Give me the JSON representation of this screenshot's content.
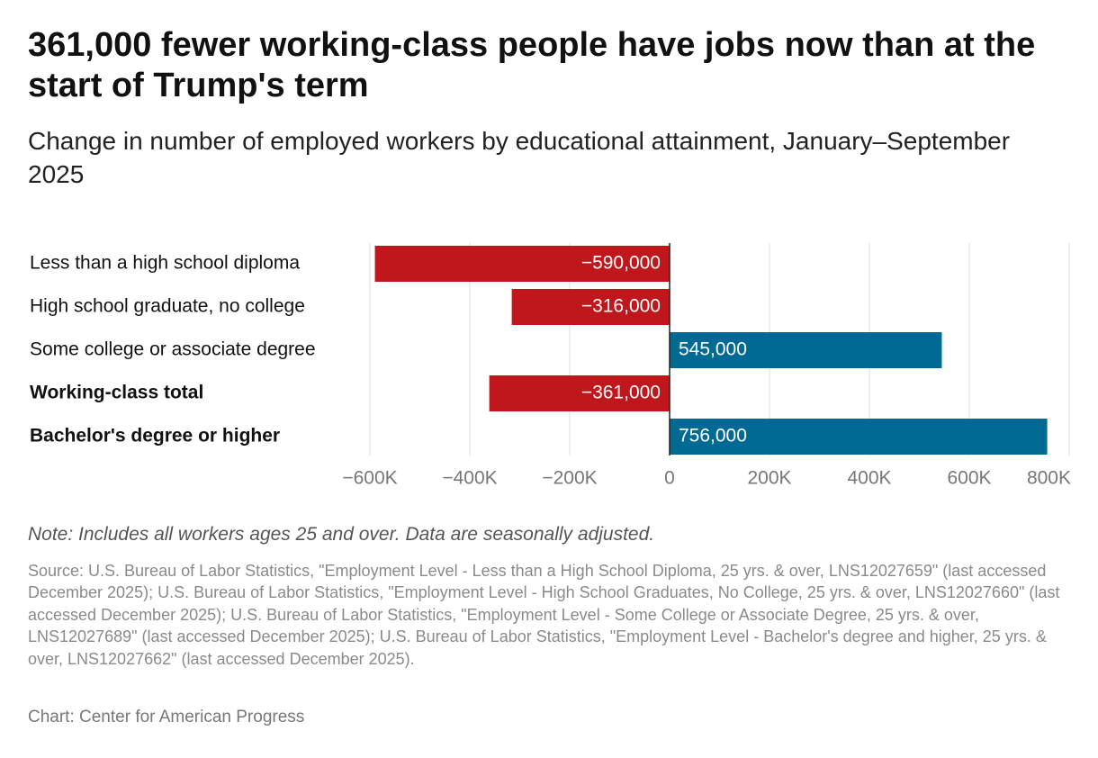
{
  "chart_data": {
    "type": "bar",
    "orientation": "horizontal",
    "title": "361,000 fewer working-class people have jobs now than at the start of Trump's term",
    "subtitle": "Change in number of employed workers by educational attainment, January–September 2025",
    "categories": [
      "Less than a high school diploma",
      "High school graduate, no college",
      "Some college or associate degree",
      "Working-class total",
      "Bachelor's degree or higher"
    ],
    "category_bold": [
      false,
      false,
      false,
      true,
      true
    ],
    "values": [
      -590000,
      -316000,
      545000,
      -361000,
      756000
    ],
    "value_labels": [
      "−590,000",
      "−316,000",
      "545,000",
      "−361,000",
      "756,000"
    ],
    "colors": [
      "#c0171d",
      "#c0171d",
      "#006a94",
      "#c0171d",
      "#006a94"
    ],
    "xlim": [
      -600000,
      800000
    ],
    "xticks": [
      {
        "value": -600000,
        "label": "−600K"
      },
      {
        "value": -400000,
        "label": "−400K"
      },
      {
        "value": -200000,
        "label": "−200K"
      },
      0,
      {
        "value": 200000,
        "label": "200K"
      },
      {
        "value": 400000,
        "label": "400K"
      },
      {
        "value": 600000,
        "label": "600K"
      },
      {
        "value": 800000,
        "label": "800K"
      }
    ],
    "grid": true,
    "note": "Note: Includes all workers ages 25 and over. Data are seasonally adjusted.",
    "source": "Source: U.S. Bureau of Labor Statistics, \"Employment Level - Less than a High School Diploma, 25 yrs. & over, LNS12027659\" (last accessed December 2025); U.S. Bureau of Labor Statistics, \"Employment Level - High School Graduates, No College, 25 yrs. & over, LNS12027660\" (last accessed December 2025); U.S. Bureau of Labor Statistics, \"Employment Level - Some College or Associate Degree, 25 yrs. & over, LNS12027689\" (last accessed December 2025); U.S. Bureau of Labor Statistics, \"Employment Level - Bachelor's degree and higher, 25 yrs. & over, LNS12027662\" (last accessed December 2025).",
    "credit": "Chart: Center for American Progress"
  }
}
